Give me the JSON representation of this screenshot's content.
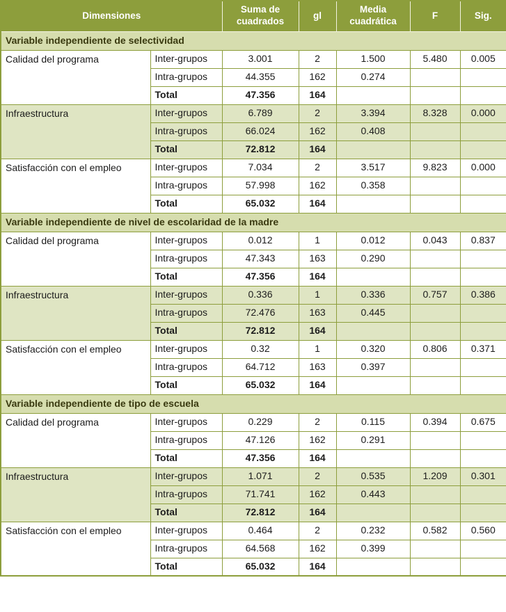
{
  "colors": {
    "header_bg": "#8d9e3c",
    "header_text": "#ffffff",
    "section_bg": "#d6ddae",
    "section_text": "#3a3a10",
    "shaded_row_bg": "#dfe5c3",
    "border": "#8d9e3c"
  },
  "table": {
    "headers": [
      "Dimensiones",
      "Suma de cuadrados",
      "gl",
      "Media cuadrática",
      "F",
      "Sig."
    ],
    "sections": [
      {
        "title": "Variable independiente de selectividad",
        "groups": [
          {
            "dimension": "Calidad del programa",
            "shaded": false,
            "rows": [
              {
                "label": "Inter-grupos",
                "suma": "3.001",
                "gl": "2",
                "media": "1.500",
                "f": "5.480",
                "sig": "0.005"
              },
              {
                "label": "Intra-grupos",
                "suma": "44.355",
                "gl": "162",
                "media": "0.274",
                "f": "",
                "sig": ""
              },
              {
                "label": "Total",
                "suma": "47.356",
                "gl": "164",
                "media": "",
                "f": "",
                "sig": ""
              }
            ]
          },
          {
            "dimension": "Infraestructura",
            "shaded": true,
            "rows": [
              {
                "label": "Inter-grupos",
                "suma": "6.789",
                "gl": "2",
                "media": "3.394",
                "f": "8.328",
                "sig": "0.000"
              },
              {
                "label": "Intra-grupos",
                "suma": "66.024",
                "gl": "162",
                "media": "0.408",
                "f": "",
                "sig": ""
              },
              {
                "label": "Total",
                "suma": "72.812",
                "gl": "164",
                "media": "",
                "f": "",
                "sig": ""
              }
            ]
          },
          {
            "dimension": "Satisfacción con el empleo",
            "shaded": false,
            "rows": [
              {
                "label": "Inter-grupos",
                "suma": "7.034",
                "gl": "2",
                "media": "3.517",
                "f": "9.823",
                "sig": "0.000"
              },
              {
                "label": "Intra-grupos",
                "suma": "57.998",
                "gl": "162",
                "media": "0.358",
                "f": "",
                "sig": ""
              },
              {
                "label": "Total",
                "suma": "65.032",
                "gl": "164",
                "media": "",
                "f": "",
                "sig": ""
              }
            ]
          }
        ]
      },
      {
        "title": "Variable independiente de nivel de escolaridad de la madre",
        "groups": [
          {
            "dimension": "Calidad del programa",
            "shaded": false,
            "rows": [
              {
                "label": "Inter-grupos",
                "suma": "0.012",
                "gl": "1",
                "media": "0.012",
                "f": "0.043",
                "sig": "0.837"
              },
              {
                "label": "Intra-grupos",
                "suma": "47.343",
                "gl": "163",
                "media": "0.290",
                "f": "",
                "sig": ""
              },
              {
                "label": "Total",
                "suma": "47.356",
                "gl": "164",
                "media": "",
                "f": "",
                "sig": ""
              }
            ]
          },
          {
            "dimension": "Infraestructura",
            "shaded": true,
            "rows": [
              {
                "label": "Inter-grupos",
                "suma": "0.336",
                "gl": "1",
                "media": "0.336",
                "f": "0.757",
                "sig": "0.386"
              },
              {
                "label": "Intra-grupos",
                "suma": "72.476",
                "gl": "163",
                "media": "0.445",
                "f": "",
                "sig": ""
              },
              {
                "label": "Total",
                "suma": "72.812",
                "gl": "164",
                "media": "",
                "f": "",
                "sig": ""
              }
            ]
          },
          {
            "dimension": "Satisfacción con el empleo",
            "shaded": false,
            "rows": [
              {
                "label": "Inter-grupos",
                "suma": "0.32",
                "gl": "1",
                "media": "0.320",
                "f": "0.806",
                "sig": "0.371"
              },
              {
                "label": "Intra-grupos",
                "suma": "64.712",
                "gl": "163",
                "media": "0.397",
                "f": "",
                "sig": ""
              },
              {
                "label": "Total",
                "suma": "65.032",
                "gl": "164",
                "media": "",
                "f": "",
                "sig": ""
              }
            ]
          }
        ]
      },
      {
        "title": "Variable independiente de tipo de escuela",
        "groups": [
          {
            "dimension": "Calidad del programa",
            "shaded": false,
            "rows": [
              {
                "label": "Inter-grupos",
                "suma": "0.229",
                "gl": "2",
                "media": "0.115",
                "f": "0.394",
                "sig": "0.675"
              },
              {
                "label": "Intra-grupos",
                "suma": "47.126",
                "gl": "162",
                "media": "0.291",
                "f": "",
                "sig": ""
              },
              {
                "label": "Total",
                "suma": "47.356",
                "gl": "164",
                "media": "",
                "f": "",
                "sig": ""
              }
            ]
          },
          {
            "dimension": "Infraestructura",
            "shaded": true,
            "rows": [
              {
                "label": "Inter-grupos",
                "suma": "1.071",
                "gl": "2",
                "media": "0.535",
                "f": "1.209",
                "sig": "0.301"
              },
              {
                "label": "Intra-grupos",
                "suma": "71.741",
                "gl": "162",
                "media": "0.443",
                "f": "",
                "sig": ""
              },
              {
                "label": "Total",
                "suma": "72.812",
                "gl": "164",
                "media": "",
                "f": "",
                "sig": ""
              }
            ]
          },
          {
            "dimension": "Satisfacción con el empleo",
            "shaded": false,
            "rows": [
              {
                "label": "Inter-grupos",
                "suma": "0.464",
                "gl": "2",
                "media": "0.232",
                "f": "0.582",
                "sig": "0.560"
              },
              {
                "label": "Intra-grupos",
                "suma": "64.568",
                "gl": "162",
                "media": "0.399",
                "f": "",
                "sig": ""
              },
              {
                "label": "Total",
                "suma": "65.032",
                "gl": "164",
                "media": "",
                "f": "",
                "sig": ""
              }
            ]
          }
        ]
      }
    ]
  }
}
